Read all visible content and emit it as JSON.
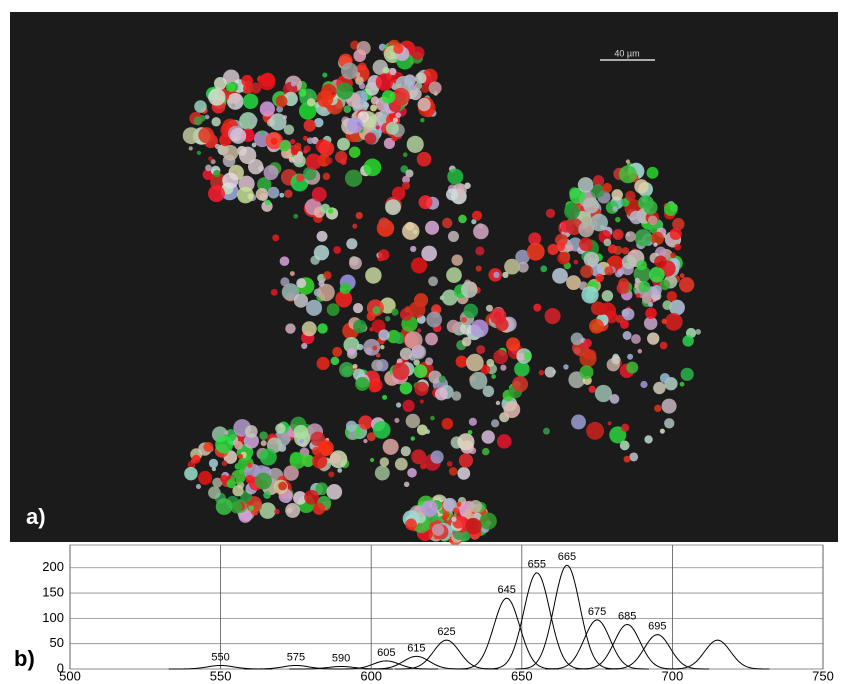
{
  "image": {
    "panel_label": "a)",
    "scale_bar_label": "40 µm"
  },
  "chart_data": {
    "type": "line",
    "panel_label": "b)",
    "x": [
      550,
      575,
      590,
      605,
      615,
      625,
      645,
      655,
      665,
      675,
      685,
      695,
      715
    ],
    "values": [
      7,
      7,
      5,
      16,
      25,
      57,
      140,
      190,
      205,
      97,
      88,
      68,
      57
    ],
    "labels": [
      "550",
      "575",
      "590",
      "605",
      "615",
      "625",
      "645",
      "655",
      "665",
      "675",
      "685",
      "695",
      null
    ],
    "color": "#000000",
    "xlim": [
      500,
      750
    ],
    "xticks": [
      500,
      550,
      600,
      650,
      700,
      750
    ],
    "ylim": [
      0,
      245
    ],
    "yticks": [
      0,
      50,
      100,
      150,
      200
    ],
    "grid": true
  }
}
